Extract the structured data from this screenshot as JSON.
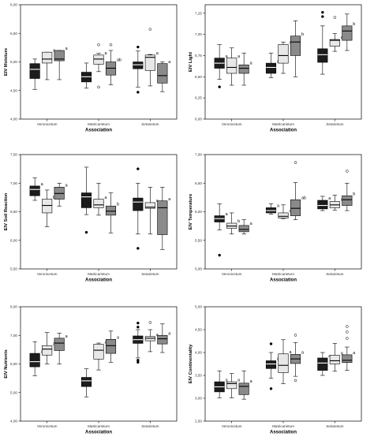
{
  "colors": {
    "black": "#1c1c1c",
    "light_grey": "#e8e8e8",
    "dark_grey": "#8a8a8a",
    "panel_bg": "#ffffff",
    "frame": "#000000"
  },
  "chart_data": [
    {
      "type": "box",
      "ylabel": "EIV Moisture",
      "xlabel": "Association",
      "categories": [
        "Veronicetum",
        "Matricarietum",
        "Setarietum"
      ],
      "yticks": [
        "4,00",
        "4,50",
        "5,00",
        "5,50",
        "6,00"
      ],
      "ylim": [
        4.0,
        6.0
      ],
      "groups": [
        {
          "boxes": [
            {
              "fill": "black",
              "whisker_low": 4.52,
              "q1": 4.71,
              "median": 4.87,
              "q3": 4.97,
              "whisker_high": 5.05,
              "outliers": [],
              "letter": ""
            },
            {
              "fill": "light",
              "whisker_low": 4.69,
              "q1": 4.98,
              "median": 5.05,
              "q3": 5.17,
              "whisker_high": 5.17,
              "outliers": [],
              "letter": "a"
            },
            {
              "fill": "dark",
              "whisker_low": 4.69,
              "q1": 5.02,
              "median": 5.05,
              "q3": 5.2,
              "whisker_high": 5.2,
              "outliers": [],
              "letter": "a"
            }
          ]
        },
        {
          "boxes": [
            {
              "fill": "black",
              "whisker_low": 4.54,
              "q1": 4.65,
              "median": 4.74,
              "q3": 4.82,
              "whisker_high": 4.98,
              "outliers": [],
              "letter": ""
            },
            {
              "fill": "light",
              "whisker_low": 4.83,
              "q1": 4.96,
              "median": 5.05,
              "q3": 5.12,
              "whisker_high": 5.15,
              "outliers": [
                4.56,
                5.3
              ],
              "letter": "a"
            },
            {
              "fill": "dark",
              "whisker_low": 4.6,
              "q1": 4.77,
              "median": 4.89,
              "q3": 5.0,
              "whisker_high": 5.2,
              "outliers": [
                5.3
              ],
              "letter": "ab"
            }
          ]
        },
        {
          "boxes": [
            {
              "fill": "black",
              "whisker_low": 4.56,
              "q1": 4.88,
              "median": 4.95,
              "q3": 5.0,
              "whisker_high": 5.19,
              "outliers": [
                5.26,
                4.47
              ],
              "letter": ""
            },
            {
              "fill": "light",
              "whisker_low": 4.58,
              "q1": 4.85,
              "median": 5.08,
              "q3": 5.12,
              "whisker_high": 5.13,
              "outliers": [
                5.57
              ],
              "letter": "a"
            },
            {
              "fill": "dark",
              "whisker_low": 4.48,
              "q1": 4.63,
              "median": 4.76,
              "q3": 4.97,
              "whisker_high": 5.0,
              "outliers": [],
              "letter": "a"
            }
          ]
        }
      ]
    },
    {
      "type": "box",
      "ylabel": "EIV Light",
      "xlabel": "Association",
      "categories": [
        "Veronicetum",
        "Matricarietum",
        "Setarietum"
      ],
      "yticks": [
        "6,00",
        "6,25",
        "6,50",
        "6,75",
        "7,00",
        "7,25"
      ],
      "ylim": [
        6.0,
        7.35
      ],
      "groups": [
        {
          "boxes": [
            {
              "fill": "black",
              "whisker_low": 6.47,
              "q1": 6.6,
              "median": 6.66,
              "q3": 6.72,
              "whisker_high": 6.88,
              "outliers": [
                6.38
              ],
              "letter": "a"
            },
            {
              "fill": "light",
              "whisker_low": 6.4,
              "q1": 6.54,
              "median": 6.61,
              "q3": 6.72,
              "whisker_high": 6.84,
              "outliers": [],
              "letter": "a"
            },
            {
              "fill": "dark",
              "whisker_low": 6.4,
              "q1": 6.54,
              "median": 6.6,
              "q3": 6.64,
              "whisker_high": 6.78,
              "outliers": [],
              "letter": "a"
            }
          ]
        },
        {
          "boxes": [
            {
              "fill": "black",
              "whisker_low": 6.49,
              "q1": 6.54,
              "median": 6.61,
              "q3": 6.66,
              "whisker_high": 6.78,
              "outliers": [],
              "letter": "a"
            },
            {
              "fill": "light",
              "whisker_low": 6.54,
              "q1": 6.66,
              "median": 6.75,
              "q3": 6.88,
              "whisker_high": 6.91,
              "outliers": [],
              "letter": "a"
            },
            {
              "fill": "dark",
              "whisker_low": 6.5,
              "q1": 6.75,
              "median": 6.91,
              "q3": 6.98,
              "whisker_high": 7.16,
              "outliers": [],
              "letter": "b"
            }
          ]
        },
        {
          "boxes": [
            {
              "fill": "black",
              "whisker_low": 6.53,
              "q1": 6.67,
              "median": 6.76,
              "q3": 6.83,
              "whisker_high": 7.1,
              "outliers": [
                7.26,
                7.21
              ],
              "letter": ""
            },
            {
              "fill": "light",
              "whisker_low": 6.8,
              "q1": 6.86,
              "median": 6.93,
              "q3": 6.94,
              "whisker_high": 7.01,
              "outliers": [
                7.2
              ],
              "letter": "ab"
            },
            {
              "fill": "dark",
              "whisker_low": 6.81,
              "q1": 6.93,
              "median": 7.04,
              "q3": 7.1,
              "whisker_high": 7.24,
              "outliers": [],
              "letter": "b"
            }
          ]
        }
      ]
    },
    {
      "type": "box",
      "ylabel": "EIV Soil Reaction",
      "xlabel": "Association",
      "categories": [
        "Veronicetum",
        "Matricarietum",
        "Setarietum"
      ],
      "yticks": [
        "5,50",
        "6,00",
        "6,50",
        "7,00",
        "7,50"
      ],
      "ylim": [
        5.5,
        7.5
      ],
      "groups": [
        {
          "boxes": [
            {
              "fill": "black",
              "whisker_low": 6.7,
              "q1": 6.78,
              "median": 6.89,
              "q3": 6.95,
              "whisker_high": 7.09,
              "outliers": [],
              "letter": "a"
            },
            {
              "fill": "light",
              "whisker_low": 6.24,
              "q1": 6.48,
              "median": 6.61,
              "q3": 6.72,
              "whisker_high": 6.88,
              "outliers": [],
              "letter": "b"
            },
            {
              "fill": "dark",
              "whisker_low": 6.6,
              "q1": 6.72,
              "median": 6.82,
              "q3": 6.93,
              "whisker_high": 7.0,
              "outliers": [],
              "letter": "a"
            }
          ]
        },
        {
          "boxes": [
            {
              "fill": "black",
              "whisker_low": 6.45,
              "q1": 6.57,
              "median": 6.76,
              "q3": 6.83,
              "whisker_high": 7.28,
              "outliers": [
                6.14
              ],
              "letter": ""
            },
            {
              "fill": "light",
              "whisker_low": 6.44,
              "q1": 6.57,
              "median": 6.62,
              "q3": 6.72,
              "whisker_high": 7.0,
              "outliers": [],
              "letter": "a"
            },
            {
              "fill": "dark",
              "whisker_low": 6.13,
              "q1": 6.44,
              "median": 6.51,
              "q3": 6.6,
              "whisker_high": 6.83,
              "outliers": [],
              "letter": "b"
            }
          ]
        },
        {
          "boxes": [
            {
              "fill": "black",
              "whisker_low": 6.11,
              "q1": 6.52,
              "median": 6.67,
              "q3": 6.74,
              "whisker_high": 7.0,
              "outliers": [
                7.25,
                5.86
              ],
              "letter": ""
            },
            {
              "fill": "light",
              "whisker_low": 6.11,
              "q1": 6.56,
              "median": 6.58,
              "q3": 6.66,
              "whisker_high": 6.93,
              "outliers": [],
              "letter": "a"
            },
            {
              "fill": "dark",
              "whisker_low": 5.84,
              "q1": 6.1,
              "median": 6.57,
              "q3": 6.69,
              "whisker_high": 6.93,
              "outliers": [],
              "letter": "a"
            }
          ]
        }
      ]
    },
    {
      "type": "box",
      "ylabel": "EIV Temperature",
      "xlabel": "Association",
      "categories": [
        "Veronicetum",
        "Matricarietum",
        "Setarietum"
      ],
      "yticks": [
        "5,00",
        "5,50",
        "6,00",
        "6,50",
        "7,00"
      ],
      "ylim": [
        5.0,
        7.0
      ],
      "groups": [
        {
          "boxes": [
            {
              "fill": "black",
              "whisker_low": 5.68,
              "q1": 5.82,
              "median": 5.88,
              "q3": 5.93,
              "whisker_high": 6.14,
              "outliers": [
                5.24
              ],
              "letter": "a"
            },
            {
              "fill": "light",
              "whisker_low": 5.61,
              "q1": 5.71,
              "median": 5.75,
              "q3": 5.8,
              "whisker_high": 5.98,
              "outliers": [],
              "letter": "b"
            },
            {
              "fill": "dark",
              "whisker_low": 5.61,
              "q1": 5.65,
              "median": 5.69,
              "q3": 5.76,
              "whisker_high": 5.86,
              "outliers": [],
              "letter": "a"
            }
          ]
        },
        {
          "boxes": [
            {
              "fill": "black",
              "whisker_low": 5.96,
              "q1": 5.98,
              "median": 6.02,
              "q3": 6.07,
              "whisker_high": 6.14,
              "outliers": [],
              "letter": "a"
            },
            {
              "fill": "light",
              "whisker_low": 5.88,
              "q1": 5.89,
              "median": 5.92,
              "q3": 5.98,
              "whisker_high": 6.12,
              "outliers": [],
              "letter": "a"
            },
            {
              "fill": "dark",
              "whisker_low": 5.86,
              "q1": 5.93,
              "median": 6.06,
              "q3": 6.21,
              "whisker_high": 6.51,
              "outliers": [
                6.86
              ],
              "letter": "ab"
            }
          ]
        },
        {
          "boxes": [
            {
              "fill": "black",
              "whisker_low": 6.02,
              "q1": 6.05,
              "median": 6.11,
              "q3": 6.2,
              "whisker_high": 6.27,
              "outliers": [],
              "letter": "a"
            },
            {
              "fill": "light",
              "whisker_low": 6.03,
              "q1": 6.07,
              "median": 6.12,
              "q3": 6.18,
              "whisker_high": 6.29,
              "outliers": [],
              "letter": "ab"
            },
            {
              "fill": "dark",
              "whisker_low": 6.02,
              "q1": 6.11,
              "median": 6.21,
              "q3": 6.28,
              "whisker_high": 6.5,
              "outliers": [
                6.71
              ],
              "letter": "b"
            }
          ]
        }
      ]
    },
    {
      "type": "box",
      "ylabel": "EIV Nutrients",
      "xlabel": "Association",
      "categories": [
        "Veronicetum",
        "Matricarietum",
        "Setarietum"
      ],
      "yticks": [
        "4,00",
        "5,00",
        "6,00",
        "7,00",
        "8,00"
      ],
      "ylim": [
        4.0,
        8.0
      ],
      "groups": [
        {
          "boxes": [
            {
              "fill": "black",
              "whisker_low": 5.59,
              "q1": 5.9,
              "median": 6.08,
              "q3": 6.37,
              "whisker_high": 6.78,
              "outliers": [],
              "letter": "a"
            },
            {
              "fill": "light",
              "whisker_low": 6.0,
              "q1": 6.31,
              "median": 6.52,
              "q3": 6.64,
              "whisker_high": 7.1,
              "outliers": [],
              "letter": "a"
            },
            {
              "fill": "dark",
              "whisker_low": 6.0,
              "q1": 6.47,
              "median": 6.73,
              "q3": 6.9,
              "whisker_high": 7.08,
              "outliers": [],
              "letter": "a"
            }
          ]
        },
        {
          "boxes": [
            {
              "fill": "black",
              "whisker_low": 4.85,
              "q1": 5.21,
              "median": 5.41,
              "q3": 5.53,
              "whisker_high": 5.83,
              "outliers": [],
              "letter": ""
            },
            {
              "fill": "light",
              "whisker_low": 5.79,
              "q1": 6.17,
              "median": 6.48,
              "q3": 6.69,
              "whisker_high": 6.73,
              "outliers": [],
              "letter": "a"
            },
            {
              "fill": "dark",
              "whisker_low": 6.06,
              "q1": 6.37,
              "median": 6.64,
              "q3": 6.86,
              "whisker_high": 7.15,
              "outliers": [],
              "letter": "a"
            }
          ]
        },
        {
          "boxes": [
            {
              "fill": "black",
              "whisker_low": 6.21,
              "q1": 6.72,
              "median": 6.85,
              "q3": 6.98,
              "whisker_high": 7.2,
              "outliers": [
                7.43,
                7.29,
                6.13,
                6.06
              ],
              "letter": ""
            },
            {
              "fill": "light",
              "whisker_low": 6.43,
              "q1": 6.81,
              "median": 6.9,
              "q3": 6.96,
              "whisker_high": 7.2,
              "outliers": [
                7.45
              ],
              "letter": "a"
            },
            {
              "fill": "dark",
              "whisker_low": 6.4,
              "q1": 6.7,
              "median": 6.88,
              "q3": 7.0,
              "whisker_high": 7.4,
              "outliers": [],
              "letter": "a"
            }
          ]
        }
      ]
    },
    {
      "type": "box",
      "ylabel": "EIV Continentality",
      "xlabel": "Association",
      "categories": [
        "Veronicetum",
        "Matricarietum",
        "Setarietum"
      ],
      "yticks": [
        "2,50",
        "3,00",
        "3,50",
        "4,00",
        "4,50",
        "5,00"
      ],
      "ylim": [
        2.5,
        5.0
      ],
      "groups": [
        {
          "boxes": [
            {
              "fill": "black",
              "whisker_low": 3.01,
              "q1": 3.14,
              "median": 3.25,
              "q3": 3.36,
              "whisker_high": 3.6,
              "outliers": [],
              "letter": "a"
            },
            {
              "fill": "light",
              "whisker_low": 3.01,
              "q1": 3.21,
              "median": 3.32,
              "q3": 3.36,
              "whisker_high": 3.54,
              "outliers": [],
              "letter": "a"
            },
            {
              "fill": "dark",
              "whisker_low": 2.98,
              "q1": 3.08,
              "median": 3.26,
              "q3": 3.33,
              "whisker_high": 3.6,
              "outliers": [],
              "letter": "a"
            }
          ]
        },
        {
          "boxes": [
            {
              "fill": "black",
              "whisker_low": 3.44,
              "q1": 3.65,
              "median": 3.75,
              "q3": 3.82,
              "whisker_high": 4.0,
              "outliers": [
                4.19,
                3.21
              ],
              "letter": "a"
            },
            {
              "fill": "light",
              "whisker_low": 3.32,
              "q1": 3.56,
              "median": 3.72,
              "q3": 3.97,
              "whisker_high": 4.28,
              "outliers": [],
              "letter": "a"
            },
            {
              "fill": "dark",
              "whisker_low": 3.48,
              "q1": 3.76,
              "median": 3.86,
              "q3": 3.96,
              "whisker_high": 4.22,
              "outliers": [
                4.38,
                3.39
              ],
              "letter": "a"
            }
          ]
        },
        {
          "boxes": [
            {
              "fill": "black",
              "whisker_low": 3.5,
              "q1": 3.61,
              "median": 3.77,
              "q3": 3.88,
              "whisker_high": 4.0,
              "outliers": [],
              "letter": "a"
            },
            {
              "fill": "light",
              "whisker_low": 3.59,
              "q1": 3.75,
              "median": 3.82,
              "q3": 3.94,
              "whisker_high": 4.2,
              "outliers": [],
              "letter": "a"
            },
            {
              "fill": "dark",
              "whisker_low": 3.61,
              "q1": 3.78,
              "median": 3.83,
              "q3": 3.95,
              "whisker_high": 4.12,
              "outliers": [
                4.57,
                4.45,
                4.31
              ],
              "letter": "a"
            }
          ]
        }
      ]
    }
  ]
}
